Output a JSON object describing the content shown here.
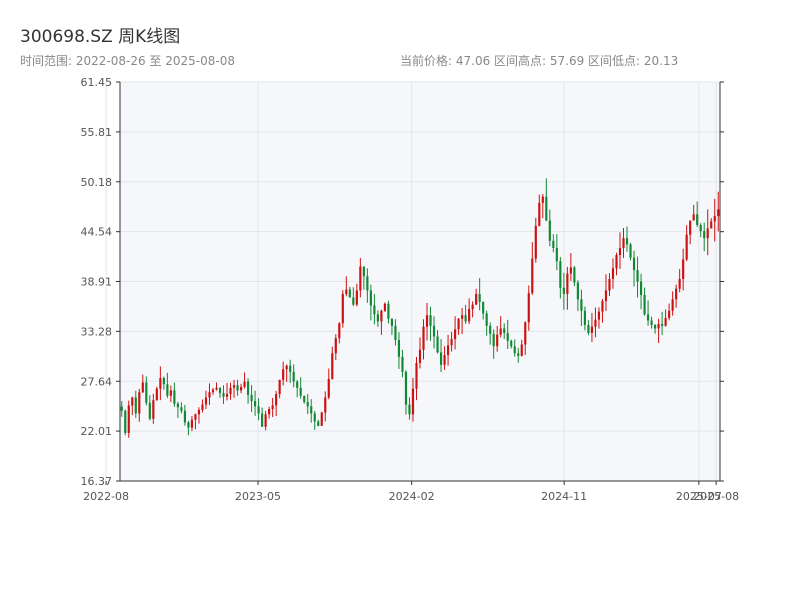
{
  "header": {
    "title": "300698.SZ 周K线图",
    "range_text": "时间范围: 2022-08-26 至 2025-08-08",
    "stats_text": "当前价格: 47.06   区间高点: 57.69   区间低点: 20.13"
  },
  "colors": {
    "up": "#cc1111",
    "down": "#118833",
    "plot_bg": "#f6f7fb",
    "grid": "#e2e5ec"
  },
  "chart_data": {
    "type": "candlestick",
    "title": "300698.SZ 周K线图",
    "ylim": [
      16.37,
      61.45
    ],
    "yticks": [
      16.37,
      22.01,
      27.64,
      33.28,
      38.91,
      44.54,
      50.18,
      55.81,
      61.45
    ],
    "ytick_labels": [
      "16.37",
      "22.01",
      "27.64",
      "33.28",
      "38.91",
      "44.54",
      "50.18",
      "55.81",
      "61.45"
    ],
    "xticks": [
      "2022-08",
      "2023-05",
      "2024-02",
      "2024-11",
      "2025-07",
      "2025-08"
    ],
    "x_start": "2022-08-26",
    "x_end": "2025-08-08",
    "grid": true,
    "current_price": 47.06,
    "period_high": 57.69,
    "period_low": 20.13,
    "weekly_closes": [
      24.3,
      21.8,
      24.9,
      25.8,
      24.0,
      26.4,
      27.5,
      25.2,
      23.4,
      25.5,
      26.8,
      28.0,
      27.3,
      26.0,
      26.6,
      25.1,
      24.7,
      24.3,
      23.0,
      22.4,
      23.3,
      23.9,
      24.4,
      25.0,
      25.8,
      26.4,
      26.7,
      26.9,
      26.3,
      25.9,
      26.2,
      26.9,
      27.2,
      26.6,
      27.0,
      27.6,
      26.1,
      25.4,
      24.8,
      24.0,
      22.5,
      23.9,
      24.5,
      24.9,
      26.2,
      27.8,
      29.0,
      29.4,
      28.7,
      27.6,
      26.9,
      26.0,
      25.3,
      24.8,
      24.0,
      23.1,
      22.6,
      24.1,
      25.8,
      27.9,
      30.8,
      32.5,
      34.2,
      37.5,
      38.0,
      37.1,
      36.3,
      37.9,
      40.6,
      39.5,
      37.9,
      36.2,
      35.2,
      34.4,
      35.6,
      36.4,
      34.7,
      33.9,
      32.3,
      30.4,
      28.7,
      25.0,
      23.9,
      26.8,
      29.7,
      31.2,
      33.8,
      35.1,
      33.9,
      32.7,
      30.9,
      29.5,
      30.6,
      31.7,
      32.4,
      33.5,
      34.7,
      35.1,
      34.4,
      35.8,
      36.3,
      37.5,
      36.6,
      35.3,
      33.9,
      33.0,
      31.6,
      32.9,
      33.6,
      33.1,
      32.2,
      31.6,
      30.8,
      30.5,
      31.8,
      34.3,
      37.6,
      41.5,
      45.2,
      47.8,
      48.5,
      45.8,
      43.5,
      42.7,
      41.2,
      38.2,
      37.5,
      39.8,
      40.5,
      38.8,
      36.9,
      35.6,
      34.0,
      33.1,
      33.8,
      34.6,
      35.5,
      36.7,
      37.9,
      39.2,
      40.4,
      41.9,
      42.7,
      43.8,
      43.1,
      41.6,
      40.2,
      38.9,
      37.4,
      35.2,
      34.5,
      34.0,
      33.6,
      34.1,
      33.9,
      34.8,
      35.6,
      36.9,
      38.1,
      39.2,
      41.4,
      44.2,
      45.8,
      46.5,
      45.3,
      44.6,
      43.8,
      44.9,
      45.7,
      46.3,
      47.06
    ],
    "series": []
  }
}
